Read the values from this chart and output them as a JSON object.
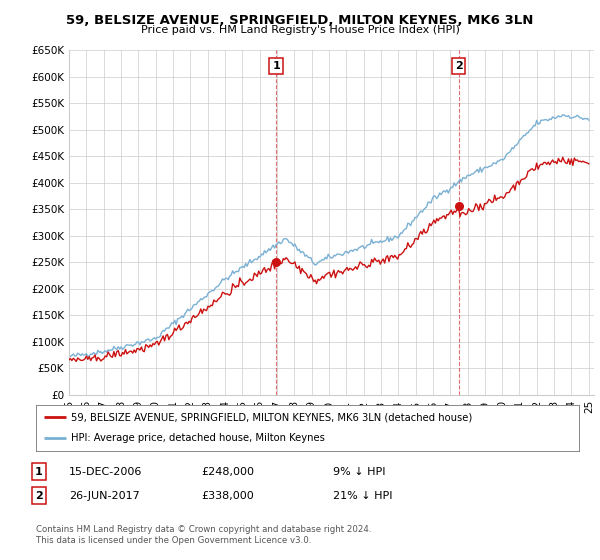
{
  "title": "59, BELSIZE AVENUE, SPRINGFIELD, MILTON KEYNES, MK6 3LN",
  "subtitle": "Price paid vs. HM Land Registry's House Price Index (HPI)",
  "ylabel_ticks": [
    0,
    50000,
    100000,
    150000,
    200000,
    250000,
    300000,
    350000,
    400000,
    450000,
    500000,
    550000,
    600000,
    650000
  ],
  "ylabel_labels": [
    "£0",
    "£50K",
    "£100K",
    "£150K",
    "£200K",
    "£250K",
    "£300K",
    "£350K",
    "£400K",
    "£450K",
    "£500K",
    "£550K",
    "£600K",
    "£650K"
  ],
  "x_start_year": 1995,
  "x_end_year": 2025,
  "hpi_color": "#7ab0d4",
  "price_color": "#cc1111",
  "transaction1": {
    "year": 2006.96,
    "price": 248000,
    "label": "1",
    "date": "15-DEC-2006",
    "pct": "9%"
  },
  "transaction2": {
    "year": 2017.48,
    "price": 338000,
    "label": "2",
    "date": "26-JUN-2017",
    "pct": "21%"
  },
  "legend_label1": "59, BELSIZE AVENUE, SPRINGFIELD, MILTON KEYNES, MK6 3LN (detached house)",
  "legend_label2": "HPI: Average price, detached house, Milton Keynes",
  "footer": "Contains HM Land Registry data © Crown copyright and database right 2024.\nThis data is licensed under the Open Government Licence v3.0.",
  "bg_color": "#ffffff",
  "grid_color": "#cccccc"
}
